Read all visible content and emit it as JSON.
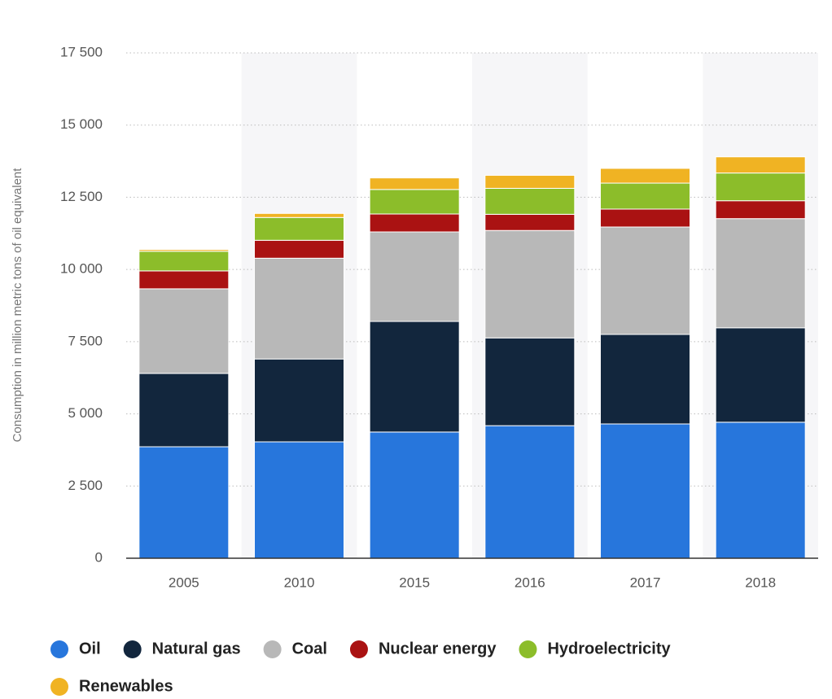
{
  "chart_data": {
    "type": "bar",
    "stacked": true,
    "y_label": "Consumption in million metric tons of oil equivalent",
    "categories": [
      "2005",
      "2010",
      "2015",
      "2016",
      "2017",
      "2018"
    ],
    "series": [
      {
        "name": "Oil",
        "color": "#2776dc",
        "values": [
          3860,
          4030,
          4370,
          4590,
          4650,
          4710
        ]
      },
      {
        "name": "Natural gas",
        "color": "#12263d",
        "values": [
          2540,
          2870,
          3830,
          3040,
          3100,
          3270
        ]
      },
      {
        "name": "Coal",
        "color": "#b8b8b8",
        "values": [
          2930,
          3490,
          3100,
          3720,
          3720,
          3780
        ]
      },
      {
        "name": "Nuclear energy",
        "color": "#aa1212",
        "values": [
          620,
          620,
          620,
          560,
          620,
          620
        ]
      },
      {
        "name": "Hydroelectricity",
        "color": "#8cbd2a",
        "values": [
          680,
          790,
          850,
          900,
          900,
          960
        ]
      },
      {
        "name": "Renewables",
        "color": "#f0b323",
        "values": [
          60,
          140,
          400,
          450,
          510,
          560
        ]
      }
    ],
    "ylim": [
      0,
      17500
    ],
    "yticks": [
      0,
      {
        "value": 2500,
        "label": "2 500"
      },
      {
        "value": 5000,
        "label": "5 000"
      },
      {
        "value": 7500,
        "label": "7 500"
      },
      {
        "value": 10000,
        "label": "10 000"
      },
      {
        "value": 12500,
        "label": "12 500"
      },
      {
        "value": 15000,
        "label": "15 000"
      },
      {
        "value": 17500,
        "label": "17 500"
      }
    ],
    "grid": true,
    "legend": "bottom"
  }
}
